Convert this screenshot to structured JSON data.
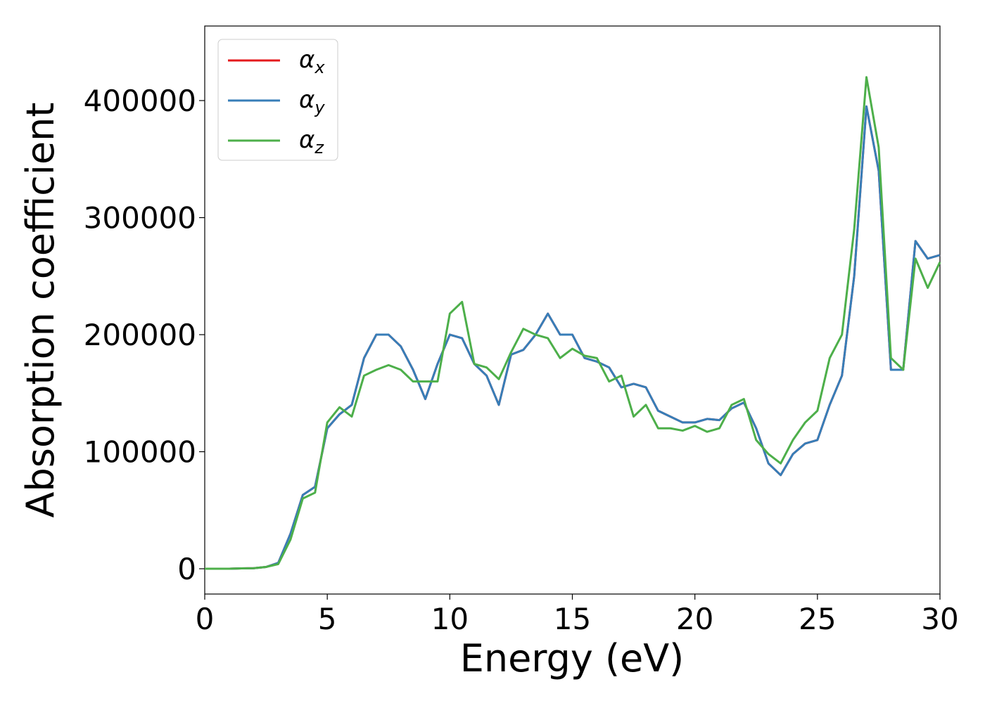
{
  "chart_data": {
    "type": "line",
    "xlabel": "Energy (eV)",
    "ylabel": "Absorption coefficient",
    "x": [
      0,
      0.5,
      1,
      1.5,
      2,
      2.5,
      3,
      3.5,
      4,
      4.5,
      5,
      5.5,
      6,
      6.5,
      7,
      7.5,
      8,
      8.5,
      9,
      9.5,
      10,
      10.5,
      11,
      11.5,
      12,
      12.5,
      13,
      13.5,
      14,
      14.5,
      15,
      15.5,
      16,
      16.5,
      17,
      17.5,
      18,
      18.5,
      19,
      19.5,
      20,
      20.5,
      21,
      21.5,
      22,
      22.5,
      23,
      23.5,
      24,
      24.5,
      25,
      25.5,
      26,
      26.5,
      27,
      27.5,
      28,
      28.5,
      29,
      29.5,
      30
    ],
    "series": [
      {
        "name": "αx",
        "color": "#e41a1c",
        "values": [
          0,
          0,
          0,
          300,
          500,
          1500,
          5000,
          30000,
          63000,
          70000,
          120000,
          132000,
          140000,
          180000,
          200000,
          200000,
          190000,
          170000,
          145000,
          175000,
          200000,
          197000,
          175000,
          165000,
          140000,
          183000,
          187000,
          200000,
          218000,
          200000,
          200000,
          180000,
          177000,
          172000,
          155000,
          158000,
          155000,
          135000,
          130000,
          125000,
          125000,
          128000,
          127000,
          137000,
          142000,
          120000,
          90000,
          80000,
          98000,
          107000,
          110000,
          140000,
          165000,
          250000,
          395000,
          340000,
          170000,
          170000,
          280000,
          265000,
          268000
        ]
      },
      {
        "name": "αy",
        "color": "#377eb8",
        "values": [
          0,
          0,
          0,
          300,
          500,
          1500,
          5000,
          30000,
          63000,
          70000,
          120000,
          132000,
          140000,
          180000,
          200000,
          200000,
          190000,
          170000,
          145000,
          175000,
          200000,
          197000,
          175000,
          165000,
          140000,
          183000,
          187000,
          200000,
          218000,
          200000,
          200000,
          180000,
          177000,
          172000,
          155000,
          158000,
          155000,
          135000,
          130000,
          125000,
          125000,
          128000,
          127000,
          137000,
          142000,
          120000,
          90000,
          80000,
          98000,
          107000,
          110000,
          140000,
          165000,
          250000,
          395000,
          340000,
          170000,
          170000,
          280000,
          265000,
          268000
        ]
      },
      {
        "name": "αz",
        "color": "#4daf4a",
        "values": [
          0,
          0,
          0,
          300,
          500,
          1500,
          4000,
          25000,
          60000,
          65000,
          125000,
          138000,
          130000,
          165000,
          170000,
          174000,
          170000,
          160000,
          160000,
          160000,
          218000,
          228000,
          175000,
          172000,
          162000,
          185000,
          205000,
          200000,
          197000,
          180000,
          188000,
          182000,
          180000,
          160000,
          165000,
          130000,
          140000,
          120000,
          120000,
          118000,
          122000,
          117000,
          120000,
          140000,
          145000,
          110000,
          98000,
          90000,
          110000,
          125000,
          135000,
          180000,
          200000,
          290000,
          420000,
          360000,
          180000,
          170000,
          265000,
          240000,
          262000
        ]
      }
    ],
    "xlim": [
      0,
      30
    ],
    "ylim": [
      -21600,
      463700
    ],
    "xticks": [
      0,
      5,
      10,
      15,
      20,
      25,
      30
    ],
    "yticks": [
      0,
      100000,
      200000,
      300000,
      400000
    ],
    "legend": "upper left"
  }
}
